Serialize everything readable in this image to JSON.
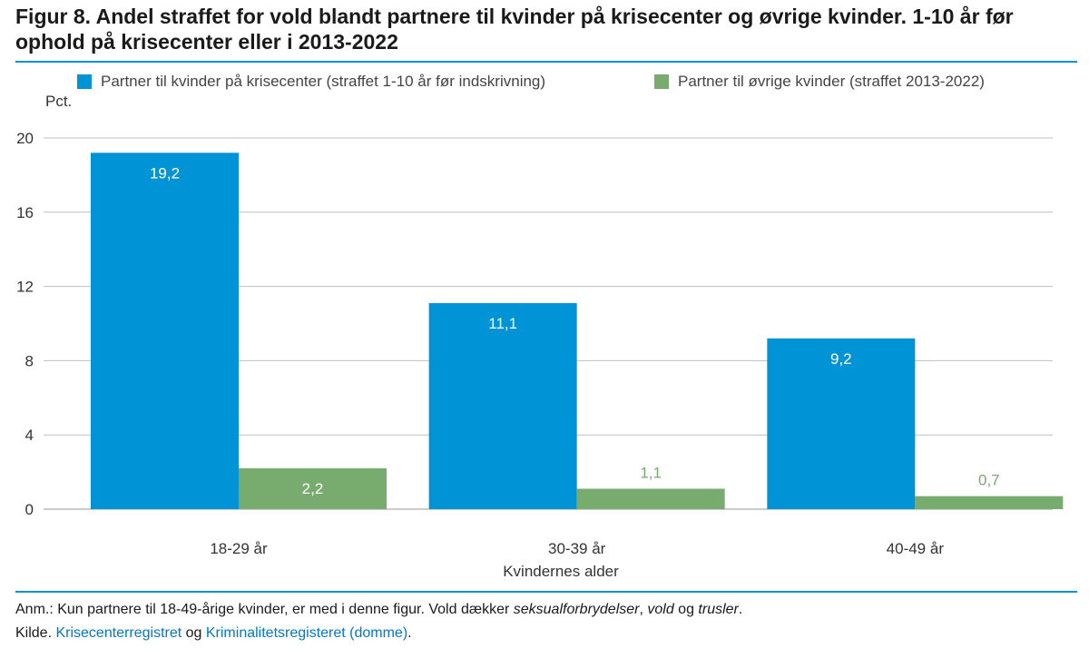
{
  "title": "Figur 8. Andel straffet for vold blandt partnere til kvinder på krisecenter og øvrige kvinder. 1-10 år før ophold på krisecenter eller i 2013-2022",
  "unit_label": "Pct.",
  "colors": {
    "accent": "#0094d6",
    "series1": "#0094d6",
    "series2": "#78ab6e",
    "link": "#0077c8"
  },
  "chart_data": {
    "type": "bar",
    "categories": [
      "18-29 år",
      "30-39 år",
      "40-49 år"
    ],
    "series": [
      {
        "name": "Partner til kvinder på krisecenter (straffet 1-10 år før indskrivning)",
        "values": [
          19.2,
          11.1,
          9.2
        ],
        "labels": [
          "19,2",
          "11,1",
          "9,2"
        ]
      },
      {
        "name": "Partner til øvrige kvinder (straffet 2013-2022)",
        "values": [
          2.2,
          1.1,
          0.7
        ],
        "labels": [
          "2,2",
          "1,1",
          "0,7"
        ]
      }
    ],
    "ylabel": "Pct.",
    "xlabel": "Kvindernes alder",
    "ylim": [
      0,
      20
    ],
    "yticks": [
      "0",
      "4",
      "8",
      "12",
      "16",
      "20"
    ],
    "grid": true,
    "legend_position": "top"
  },
  "note": {
    "prefix": "Anm.: Kun partnere til 18-49-årige kvinder, er med i denne figur. Vold dækker ",
    "term1": "seksualforbrydelser",
    "sep1": ", ",
    "term2": "vold",
    "sep2": " og ",
    "term3": "trusler",
    "suffix": "."
  },
  "source": {
    "prefix": "Kilde. ",
    "link1": "Krisecenterregistret",
    "middle": " og ",
    "link2": "Kriminalitetsregisteret (domme)",
    "suffix": "."
  }
}
